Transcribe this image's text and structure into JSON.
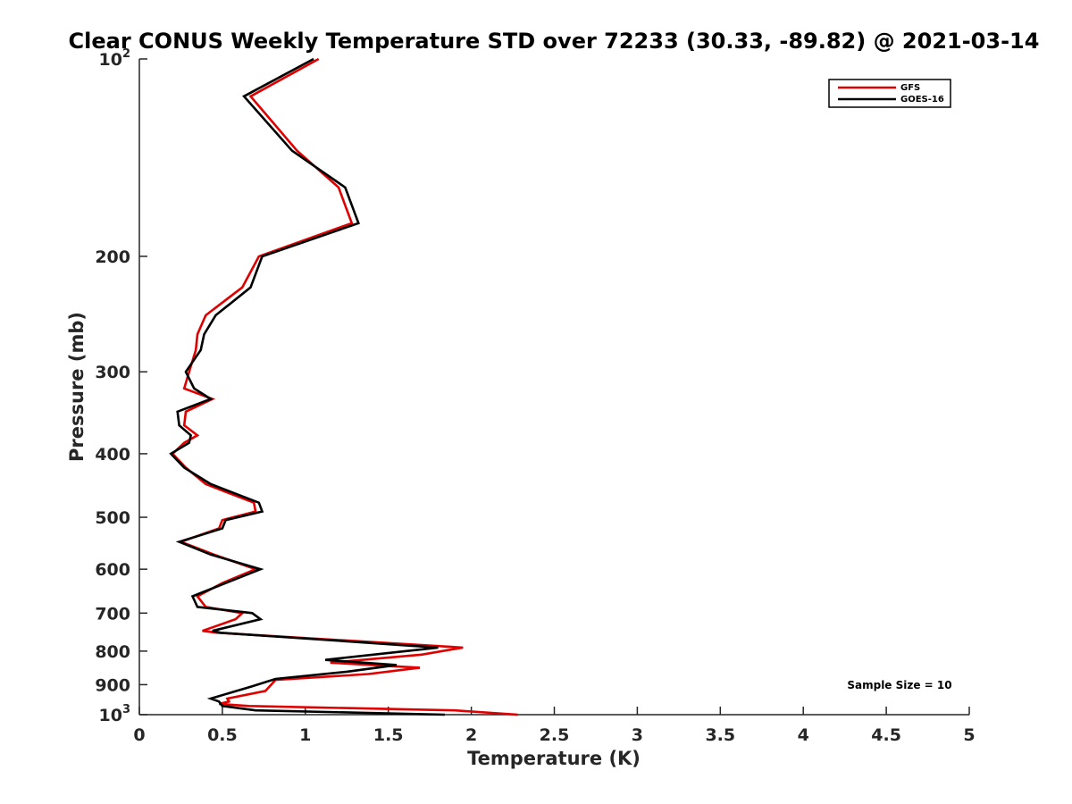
{
  "chart_data": {
    "type": "line",
    "title": "Clear CONUS Weekly Temperature STD over 72233 (30.33, -89.82) @ 2021-03-14",
    "xlabel": "Temperature (K)",
    "ylabel": "Pressure (mb)",
    "xlim": [
      0,
      5
    ],
    "ylim": [
      100,
      1000
    ],
    "yscale": "log",
    "y_reversed": true,
    "x_ticks": [
      0,
      0.5,
      1,
      1.5,
      2,
      2.5,
      3,
      3.5,
      4,
      4.5,
      5
    ],
    "x_tick_labels": [
      "0",
      "0.5",
      "1",
      "1.5",
      "2",
      "2.5",
      "3",
      "3.5",
      "4",
      "4.5",
      "5"
    ],
    "y_ticks": [
      100,
      200,
      300,
      400,
      500,
      600,
      700,
      800,
      900,
      1000
    ],
    "y_tick_labels": [
      {
        "base": "10",
        "exp": "2"
      },
      {
        "base": "200"
      },
      {
        "base": "300"
      },
      {
        "base": "400"
      },
      {
        "base": "500"
      },
      {
        "base": "600"
      },
      {
        "base": "700"
      },
      {
        "base": "800"
      },
      {
        "base": "900"
      },
      {
        "base": "10",
        "exp": "3"
      }
    ],
    "legend": {
      "position": "top-right"
    },
    "series": [
      {
        "name": "GFS",
        "color": "#e00000",
        "x": [
          1.08,
          0.67,
          0.95,
          1.2,
          1.28,
          0.72,
          0.62,
          0.4,
          0.35,
          0.34,
          0.3,
          0.27,
          0.44,
          0.28,
          0.27,
          0.35,
          0.27,
          0.2,
          0.28,
          0.4,
          0.69,
          0.7,
          0.5,
          0.48,
          0.25,
          0.45,
          0.7,
          0.5,
          0.35,
          0.4,
          0.62,
          0.58,
          0.38,
          0.47,
          1.95,
          1.7,
          1.15,
          1.69,
          1.38,
          0.82,
          0.76,
          0.53,
          0.54,
          0.48,
          0.66,
          1.9,
          2.28
        ],
        "y": [
          100,
          114,
          138,
          157,
          178,
          200,
          223,
          246,
          263,
          278,
          300,
          318,
          330,
          345,
          362,
          375,
          385,
          400,
          420,
          445,
          475,
          490,
          505,
          520,
          545,
          570,
          600,
          630,
          660,
          685,
          700,
          715,
          745,
          750,
          790,
          810,
          833,
          848,
          867,
          885,
          920,
          945,
          955,
          963,
          970,
          985,
          1000
        ]
      },
      {
        "name": "GOES-16",
        "color": "#000000",
        "x": [
          1.05,
          0.63,
          0.92,
          1.24,
          1.32,
          0.74,
          0.67,
          0.46,
          0.39,
          0.37,
          0.28,
          0.33,
          0.43,
          0.23,
          0.24,
          0.31,
          0.3,
          0.19,
          0.27,
          0.43,
          0.72,
          0.74,
          0.52,
          0.5,
          0.24,
          0.43,
          0.73,
          0.52,
          0.32,
          0.35,
          0.68,
          0.73,
          0.44,
          0.49,
          1.8,
          1.12,
          1.55,
          1.25,
          0.82,
          0.68,
          0.43,
          0.48,
          0.5,
          0.7,
          1.84
        ],
        "y": [
          100,
          114,
          138,
          157,
          178,
          200,
          223,
          246,
          263,
          278,
          300,
          318,
          330,
          345,
          362,
          375,
          385,
          400,
          420,
          445,
          475,
          490,
          505,
          520,
          545,
          570,
          600,
          630,
          660,
          685,
          700,
          715,
          745,
          750,
          790,
          825,
          840,
          860,
          882,
          905,
          945,
          955,
          970,
          985,
          1000
        ]
      }
    ],
    "annotation": "Sample Size = 10"
  }
}
